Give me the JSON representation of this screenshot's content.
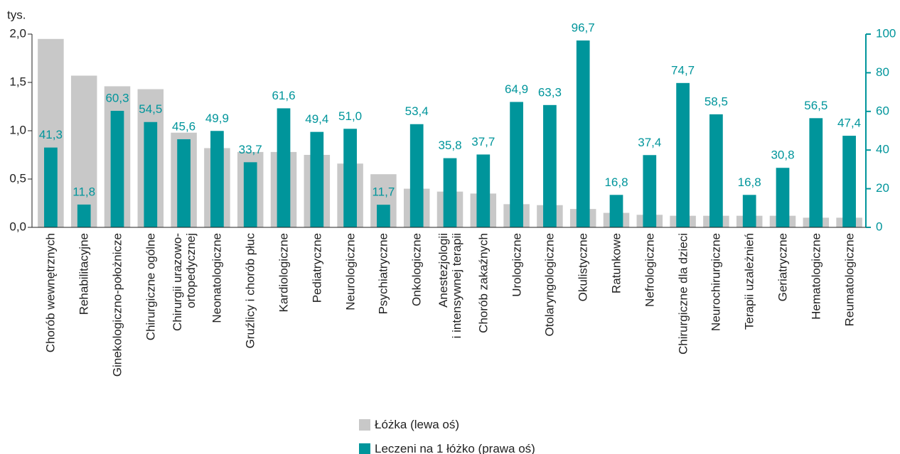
{
  "chart_data": {
    "type": "bar",
    "y_label": "tys.",
    "categories": [
      "Chorób wewnętrznych",
      "Rehabilitacyjne",
      "Ginekologiczno-położnicze",
      "Chirurgiczne ogólne",
      "Chirurgii urazowo-\nortopedycznej",
      "Neonatologiczne",
      "Gruźlicy i chorób płuc",
      "Kardiologiczne",
      "Pediatryczne",
      "Neurologiczne",
      "Psychiatryczne",
      "Onkologiczne",
      "Anestezjologii\ni intensywnej terapii",
      "Chorób zakaźnych",
      "Urologiczne",
      "Otolaryngologiczne",
      "Okulistyczne",
      "Ratunkowe",
      "Nefrologiczne",
      "Chirurgiczne dla dzieci",
      "Neurochirurgiczne",
      "Terapii uzależnień",
      "Geriatryczne",
      "Hematologiczne",
      "Reumatologiczne"
    ],
    "series": [
      {
        "name": "Łóżka (lewa oś)",
        "color": "#c8c8c8",
        "axis": "y",
        "values": [
          1.95,
          1.57,
          1.46,
          1.43,
          0.98,
          0.82,
          0.78,
          0.78,
          0.75,
          0.66,
          0.55,
          0.4,
          0.37,
          0.35,
          0.24,
          0.23,
          0.19,
          0.15,
          0.13,
          0.12,
          0.12,
          0.12,
          0.12,
          0.1,
          0.1
        ]
      },
      {
        "name": "Leczeni na 1 łóżko (prawa oś)",
        "color": "#00959b",
        "axis": "y2",
        "values": [
          41.3,
          11.8,
          60.3,
          54.5,
          45.6,
          49.9,
          33.7,
          61.6,
          49.4,
          51.0,
          11.7,
          53.4,
          35.8,
          37.7,
          64.9,
          63.3,
          96.7,
          16.8,
          37.4,
          74.7,
          58.5,
          16.8,
          30.8,
          56.5,
          47.4
        ],
        "value_labels": [
          "41,3",
          "11,8",
          "60,3",
          "54,5",
          "45,6",
          "49,9",
          "33,7",
          "61,6",
          "49,4",
          "51,0",
          "11,7",
          "53,4",
          "35,8",
          "37,7",
          "64,9",
          "63,3",
          "96,7",
          "16,8",
          "37,4",
          "74,7",
          "58,5",
          "16,8",
          "30,8",
          "56,5",
          "47,4"
        ]
      }
    ],
    "ylim": [
      0,
      2
    ],
    "yticks": [
      {
        "value": 0,
        "label": "0,0"
      },
      {
        "value": 0.5,
        "label": "0,5"
      },
      {
        "value": 1,
        "label": "1,0"
      },
      {
        "value": 1.5,
        "label": "1,5"
      },
      {
        "value": 2,
        "label": "2,0"
      }
    ],
    "y2lim": [
      0,
      100
    ],
    "y2ticks": [
      0,
      20,
      40,
      60,
      80,
      100
    ],
    "legend": "bottom"
  }
}
